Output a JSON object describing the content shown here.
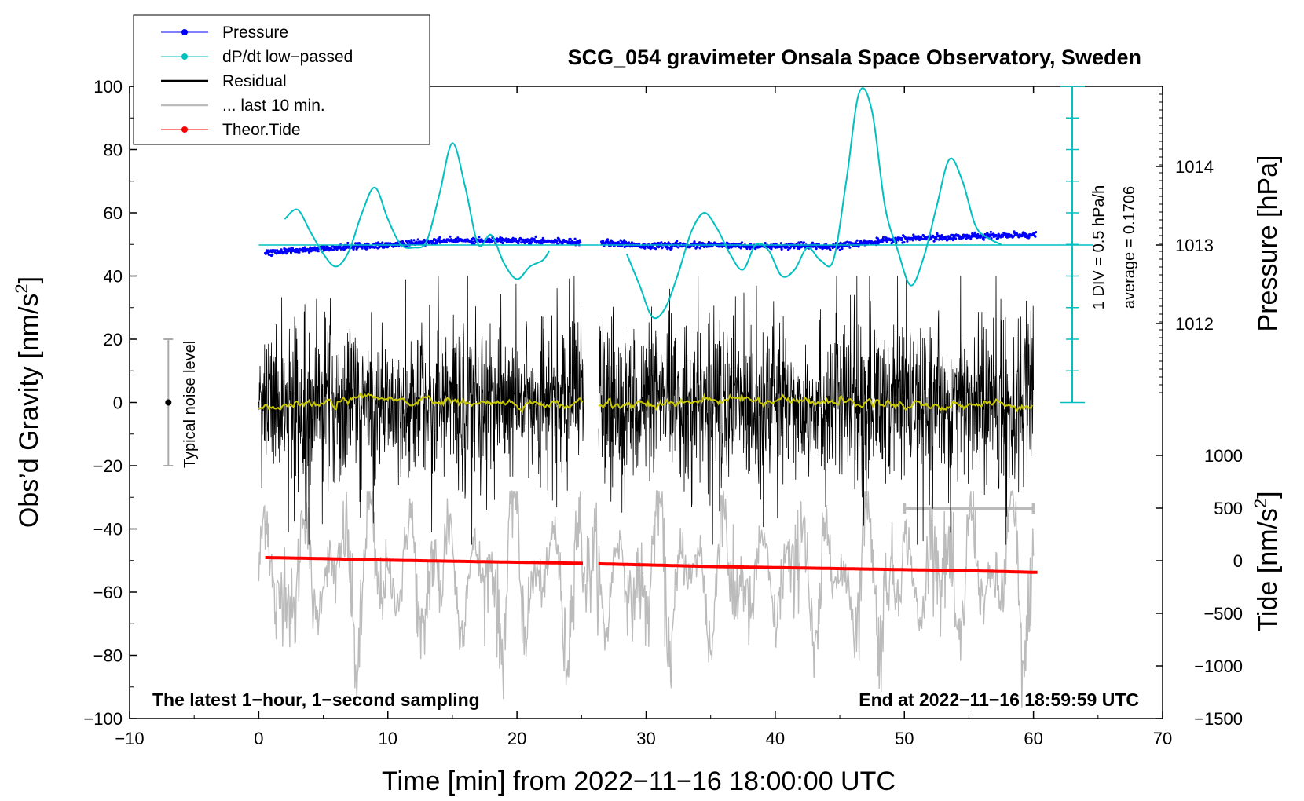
{
  "chart_data": {
    "type": "line",
    "title": "SCG_054 gravimeter Onsala Space Observatory, Sweden",
    "xlabel": "Time [min] from 2022−11−16 18:00:00 UTC",
    "ylabel": "Obs’d Gravity [nm/s",
    "ylabel_sup": "2",
    "ylabel_close": "]",
    "y2label": "Pressure [hPa]",
    "y3label": "Tide [nm/s",
    "y3label_sup": "2",
    "y3label_close": "]",
    "xlim": [
      -10,
      70
    ],
    "ylim": [
      -100,
      100
    ],
    "x_ticks": [
      "−10",
      "0",
      "10",
      "20",
      "30",
      "40",
      "50",
      "60",
      "70"
    ],
    "y_ticks": [
      "100",
      "80",
      "60",
      "40",
      "20",
      "0",
      "−20",
      "−40",
      "−60",
      "−80",
      "−100"
    ],
    "pressure_ticks": [
      "1014",
      "1013",
      "1012"
    ],
    "tide_ticks": [
      "1000",
      "500",
      "0",
      "−500",
      "−1000",
      "−1500"
    ],
    "legend": [
      {
        "label": "Pressure",
        "color": "#0000ff",
        "marker": true
      },
      {
        "label": "dP/dt low−passed",
        "color": "#00c0c0",
        "marker": true
      },
      {
        "label": "Residual",
        "color": "#000000",
        "marker": false
      },
      {
        "label": "... last 10 min.",
        "color": "#bbbbbb",
        "marker": false
      },
      {
        "label": "Theor.Tide",
        "color": "#ff0000",
        "marker": true
      }
    ],
    "annotations": {
      "bottom_left": "The latest 1−hour, 1−second sampling",
      "bottom_right": "End at 2022−11−16 18:59:59 UTC",
      "noise_label": "Typical noise level",
      "dpdt_scale": "1 DIV = 0.5 hPa/h",
      "dpdt_average": "average = 0.1706"
    },
    "noise_bar": {
      "x": -7,
      "center": 0,
      "half_range": 20
    },
    "data_gap": [
      25.2,
      26.3
    ],
    "series": [
      {
        "name": "Pressure",
        "color": "#0000ff",
        "units": "hPa",
        "points": [
          [
            0.5,
            1012.9
          ],
          [
            5,
            1012.96
          ],
          [
            10,
            1013.0
          ],
          [
            15,
            1013.06
          ],
          [
            20,
            1013.06
          ],
          [
            25,
            1013.04
          ],
          [
            27,
            1013.03
          ],
          [
            30,
            1012.99
          ],
          [
            35,
            1013.0
          ],
          [
            40,
            1012.98
          ],
          [
            45,
            1012.99
          ],
          [
            50,
            1013.08
          ],
          [
            55,
            1013.11
          ],
          [
            60,
            1013.13
          ]
        ]
      },
      {
        "name": "dP/dt low−passed",
        "color": "#00c0c0",
        "units": "gravity-axis units",
        "points": [
          [
            2,
            58
          ],
          [
            3,
            61
          ],
          [
            4,
            54
          ],
          [
            5,
            47
          ],
          [
            6,
            43
          ],
          [
            7,
            48
          ],
          [
            8,
            60
          ],
          [
            9,
            68
          ],
          [
            10,
            58
          ],
          [
            11,
            50
          ],
          [
            12,
            49
          ],
          [
            13,
            51
          ],
          [
            14,
            66
          ],
          [
            15,
            82
          ],
          [
            16,
            68
          ],
          [
            17,
            50
          ],
          [
            18,
            53
          ],
          [
            19,
            44
          ],
          [
            20,
            39
          ],
          [
            21,
            43
          ],
          [
            22,
            45
          ],
          [
            22.5,
            48
          ],
          [
            28.5,
            47
          ],
          [
            29.5,
            37
          ],
          [
            30.5,
            27
          ],
          [
            31.5,
            30
          ],
          [
            32.5,
            41
          ],
          [
            33.5,
            54
          ],
          [
            34.5,
            60
          ],
          [
            35.5,
            55
          ],
          [
            36.5,
            47
          ],
          [
            37.5,
            42
          ],
          [
            38.5,
            50
          ],
          [
            39.5,
            48
          ],
          [
            40.5,
            40
          ],
          [
            41.5,
            42
          ],
          [
            42.5,
            49
          ],
          [
            43.5,
            45
          ],
          [
            44.5,
            45
          ],
          [
            45.5,
            70
          ],
          [
            46.5,
            98
          ],
          [
            47.5,
            92
          ],
          [
            48.5,
            62
          ],
          [
            49.5,
            48
          ],
          [
            50.5,
            37
          ],
          [
            51.5,
            46
          ],
          [
            52.5,
            62
          ],
          [
            53.5,
            77
          ],
          [
            54.5,
            70
          ],
          [
            55.5,
            56
          ],
          [
            56.5,
            52
          ],
          [
            57.5,
            50
          ]
        ]
      },
      {
        "name": "Residual",
        "color": "#000000",
        "units": "nm/s2",
        "range": [
          0,
          60
        ],
        "amplitude_typical": 20,
        "low_passed_color": "#c8c800"
      },
      {
        "name": "... last 10 min.",
        "color": "#bbbbbb",
        "units": "nm/s2 (plotted stretched over 0–60 min)",
        "range": [
          0,
          60
        ]
      },
      {
        "name": "Theor.Tide",
        "color": "#ff0000",
        "units": "nm/s2",
        "points": [
          [
            0.5,
            30
          ],
          [
            5,
            20
          ],
          [
            10,
            5
          ],
          [
            15,
            -5
          ],
          [
            20,
            -15
          ],
          [
            25,
            -25
          ],
          [
            26.5,
            -30
          ],
          [
            30,
            -40
          ],
          [
            35,
            -55
          ],
          [
            40,
            -65
          ],
          [
            45,
            -75
          ],
          [
            50,
            -85
          ],
          [
            55,
            -95
          ],
          [
            60,
            -110
          ]
        ]
      }
    ]
  }
}
